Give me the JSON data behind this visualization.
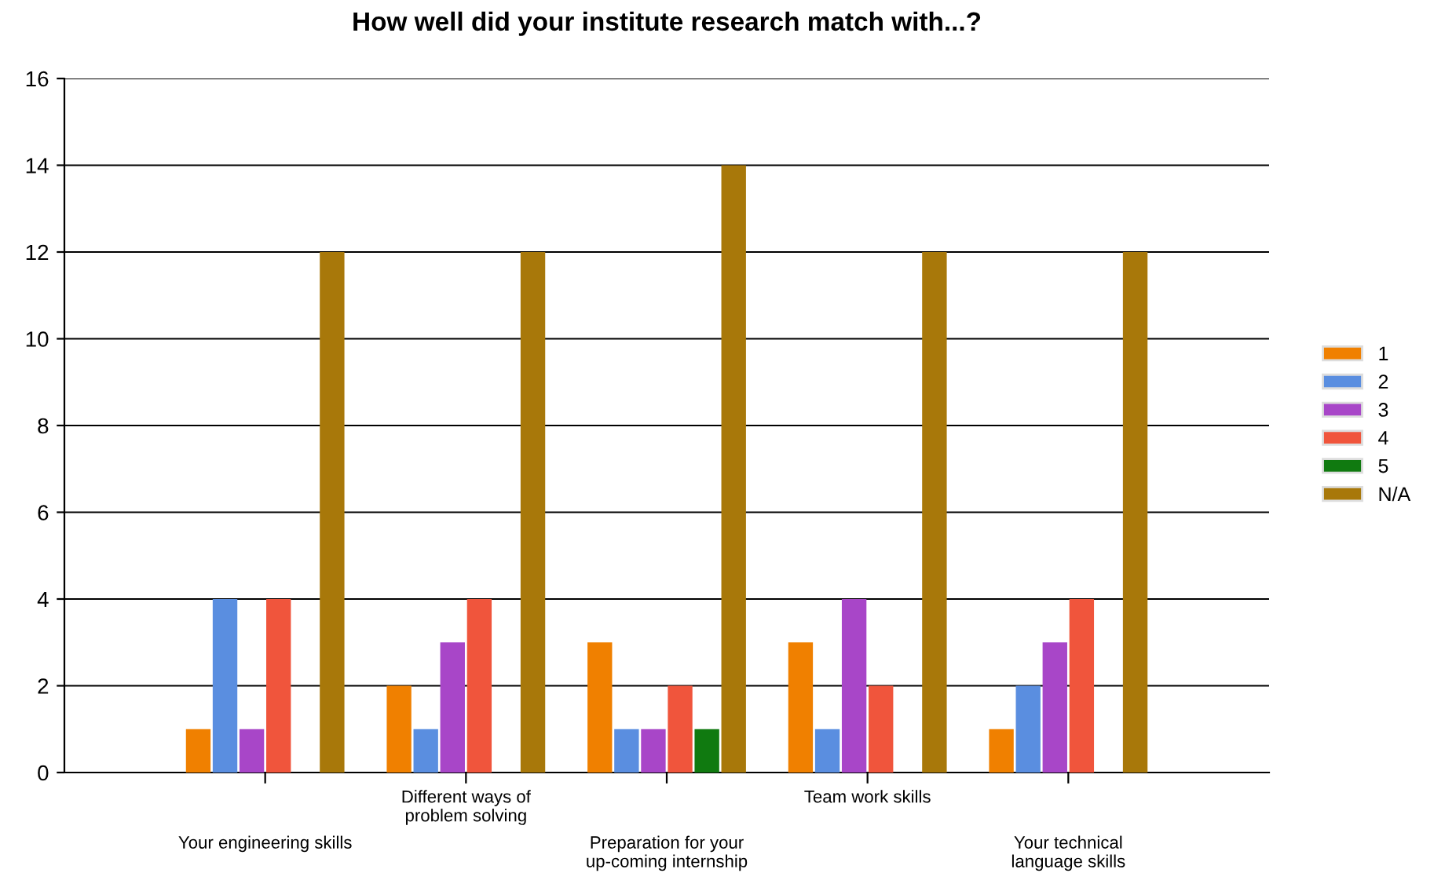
{
  "chart_data": {
    "type": "bar",
    "title": "How well did your institute research match with...?",
    "categories": [
      "Your engineering skills",
      "Different ways of\nproblem solving",
      "Preparation for your\nup-coming internship",
      "Team work skills",
      "Your technical\nlanguage skills"
    ],
    "series": [
      {
        "name": "1",
        "color": "#f08000",
        "values": [
          1,
          2,
          3,
          3,
          1
        ]
      },
      {
        "name": "2",
        "color": "#5a8ee0",
        "values": [
          4,
          1,
          1,
          1,
          2
        ]
      },
      {
        "name": "3",
        "color": "#a846c8",
        "values": [
          1,
          3,
          1,
          4,
          3
        ]
      },
      {
        "name": "4",
        "color": "#f0553c",
        "values": [
          4,
          4,
          2,
          2,
          4
        ]
      },
      {
        "name": "5",
        "color": "#107a10",
        "values": [
          null,
          null,
          1,
          null,
          null
        ]
      },
      {
        "name": "N/A",
        "color": "#a8780a",
        "values": [
          12,
          12,
          14,
          12,
          12
        ]
      }
    ],
    "ylim": [
      0,
      16
    ],
    "yticks": [
      0,
      2,
      4,
      6,
      8,
      10,
      12,
      14,
      16
    ],
    "grid": "y",
    "legend": "right"
  }
}
